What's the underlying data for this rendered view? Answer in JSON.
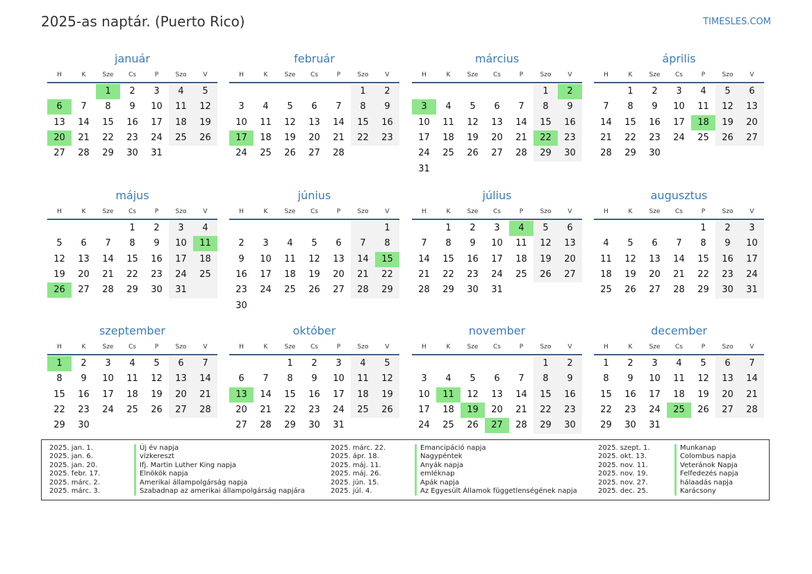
{
  "title": "2025-as naptár. (Puerto Rico)",
  "site": "TIMESLES.COM",
  "weekdays": [
    "H",
    "K",
    "Sze",
    "Cs",
    "P",
    "Szo",
    "V"
  ],
  "months": [
    {
      "name": "január",
      "days": 31,
      "offset": 2,
      "holidays": [
        1,
        6,
        20
      ]
    },
    {
      "name": "február",
      "days": 28,
      "offset": 5,
      "holidays": [
        17
      ]
    },
    {
      "name": "március",
      "days": 31,
      "offset": 5,
      "holidays": [
        2,
        3,
        22
      ]
    },
    {
      "name": "április",
      "days": 30,
      "offset": 1,
      "holidays": [
        18
      ]
    },
    {
      "name": "május",
      "days": 31,
      "offset": 3,
      "holidays": [
        11,
        26
      ]
    },
    {
      "name": "június",
      "days": 30,
      "offset": 6,
      "holidays": [
        15
      ]
    },
    {
      "name": "július",
      "days": 31,
      "offset": 1,
      "holidays": [
        4
      ]
    },
    {
      "name": "augusztus",
      "days": 31,
      "offset": 4,
      "holidays": []
    },
    {
      "name": "szeptember",
      "days": 30,
      "offset": 0,
      "holidays": [
        1
      ]
    },
    {
      "name": "október",
      "days": 31,
      "offset": 2,
      "holidays": [
        13
      ]
    },
    {
      "name": "november",
      "days": 30,
      "offset": 5,
      "holidays": [
        11,
        19,
        27
      ]
    },
    {
      "name": "december",
      "days": 31,
      "offset": 0,
      "holidays": [
        25
      ]
    }
  ],
  "holiday_list": [
    [
      {
        "date": "2025. jan. 1.",
        "name": "Új év napja"
      },
      {
        "date": "2025. jan. 6.",
        "name": "vízkereszt"
      },
      {
        "date": "2025. jan. 20.",
        "name": "Ifj. Martin Luther King napja"
      },
      {
        "date": "2025. febr. 17.",
        "name": "Elnökök napja"
      },
      {
        "date": "2025. márc. 2.",
        "name": "Amerikai állampolgárság napja"
      },
      {
        "date": "2025. márc. 3.",
        "name": "Szabadnap az amerikai állampolgárság napjára"
      }
    ],
    [
      {
        "date": "2025. márc. 22.",
        "name": "Emancipáció napja"
      },
      {
        "date": "2025. ápr. 18.",
        "name": "Nagypéntek"
      },
      {
        "date": "2025. máj. 11.",
        "name": "Anyák napja"
      },
      {
        "date": "2025. máj. 26.",
        "name": "emléknap"
      },
      {
        "date": "2025. jún. 15.",
        "name": "Apák napja"
      },
      {
        "date": "2025. júl. 4.",
        "name": "Az Egyesült Államok függetlenségének napja"
      }
    ],
    [
      {
        "date": "2025. szept. 1.",
        "name": "Munkanap"
      },
      {
        "date": "2025. okt. 13.",
        "name": "Colombus napja"
      },
      {
        "date": "2025. nov. 11.",
        "name": "Veteránok Napja"
      },
      {
        "date": "2025. nov. 19.",
        "name": "Felfedezés napja"
      },
      {
        "date": "2025. nov. 27.",
        "name": "hálaadás napja"
      },
      {
        "date": "2025. dec. 25.",
        "name": "Karácsony"
      }
    ]
  ]
}
